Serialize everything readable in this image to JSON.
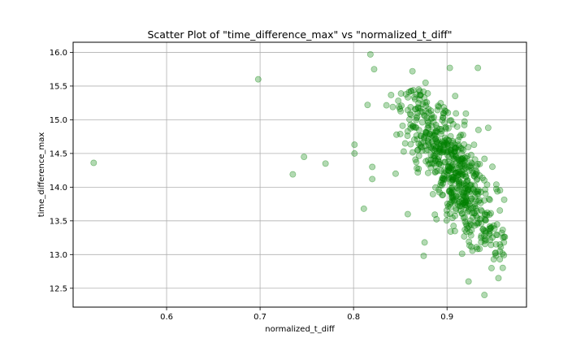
{
  "chart_data": {
    "type": "scatter",
    "title": "Scatter Plot of \"time_difference_max\" vs \"normalized_t_diff\"",
    "xlabel": "normalized_t_diff",
    "ylabel": "time_difference_max",
    "xlim": [
      0.5,
      0.985
    ],
    "ylim": [
      12.22,
      16.15
    ],
    "xticks": [
      0.6,
      0.7,
      0.8,
      0.9
    ],
    "xtick_labels": [
      "0.6",
      "0.7",
      "0.8",
      "0.9"
    ],
    "yticks": [
      12.5,
      13.0,
      13.5,
      14.0,
      14.5,
      15.0,
      15.5,
      16.0
    ],
    "ytick_labels": [
      "12.5",
      "13.0",
      "13.5",
      "14.0",
      "14.5",
      "15.0",
      "15.5",
      "16.0"
    ],
    "grid": true,
    "point_color": "#008000",
    "point_alpha": 0.3,
    "outliers": [
      {
        "x": 0.522,
        "y": 14.36
      },
      {
        "x": 0.698,
        "y": 15.6
      },
      {
        "x": 0.735,
        "y": 14.19
      },
      {
        "x": 0.747,
        "y": 14.45
      },
      {
        "x": 0.77,
        "y": 14.35
      },
      {
        "x": 0.801,
        "y": 14.63
      },
      {
        "x": 0.801,
        "y": 14.5
      },
      {
        "x": 0.811,
        "y": 13.68
      },
      {
        "x": 0.815,
        "y": 15.22
      },
      {
        "x": 0.818,
        "y": 15.97
      },
      {
        "x": 0.822,
        "y": 15.75
      },
      {
        "x": 0.82,
        "y": 14.3
      },
      {
        "x": 0.82,
        "y": 14.12
      },
      {
        "x": 0.863,
        "y": 15.72
      },
      {
        "x": 0.877,
        "y": 15.55
      },
      {
        "x": 0.875,
        "y": 12.98
      },
      {
        "x": 0.876,
        "y": 13.18
      },
      {
        "x": 0.923,
        "y": 12.6
      },
      {
        "x": 0.94,
        "y": 12.4
      },
      {
        "x": 0.955,
        "y": 12.65
      },
      {
        "x": 0.903,
        "y": 15.77
      },
      {
        "x": 0.933,
        "y": 15.77
      },
      {
        "x": 0.96,
        "y": 13.25
      },
      {
        "x": 0.95,
        "y": 12.93
      },
      {
        "x": 0.858,
        "y": 13.6
      },
      {
        "x": 0.845,
        "y": 14.2
      }
    ],
    "cluster": {
      "count": 640,
      "seed": 7,
      "x_min": 0.825,
      "x_max": 0.962,
      "center": 0.905,
      "spread": 0.025,
      "slope": -19.0,
      "intercept_at_center": 14.27,
      "y_noise": 0.36
    }
  }
}
